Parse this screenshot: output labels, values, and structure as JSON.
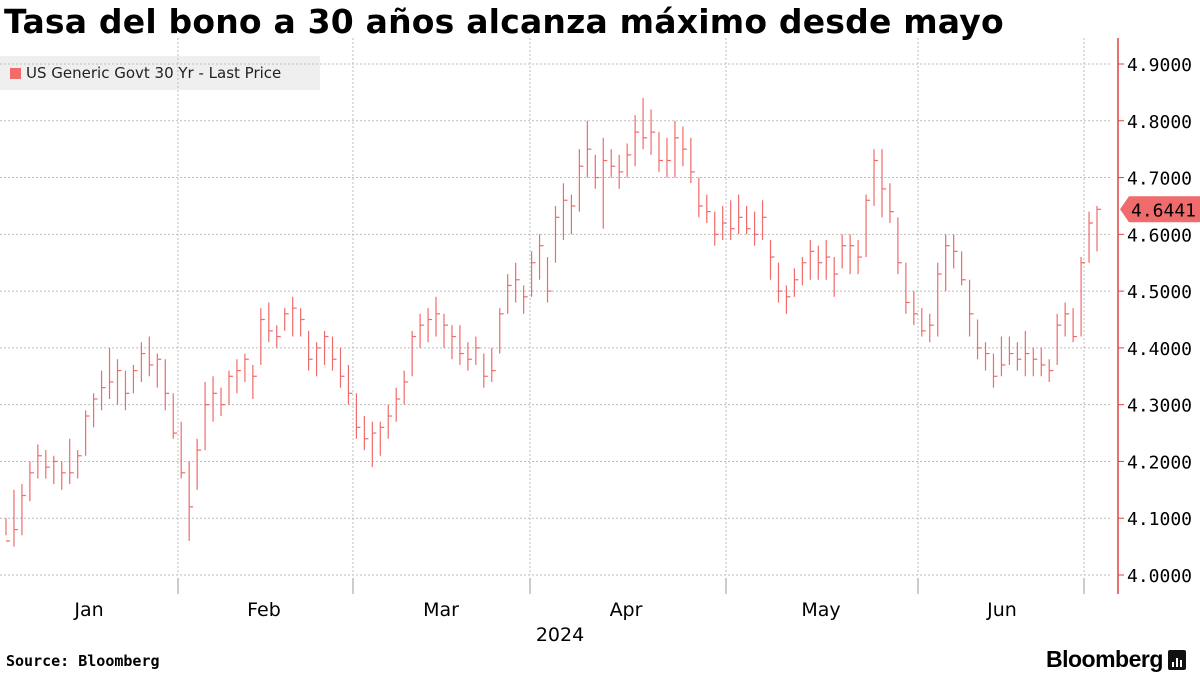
{
  "title": "Tasa del bono a 30 años alcanza máximo desde mayo",
  "source": "Source: Bloomberg",
  "brand": "Bloomberg",
  "colors": {
    "series": "#f06b6b",
    "grid": "#bdbdbd",
    "axis": "#e3403f",
    "text": "#000000"
  },
  "chart_data": {
    "type": "line",
    "series": [
      {
        "name": "US Generic Govt 30 Yr - Last Price",
        "style": "ohlc-bars"
      }
    ],
    "x_ticks": [
      "Jan",
      "Feb",
      "Mar",
      "Apr",
      "May",
      "Jun"
    ],
    "x_year_label": "2024",
    "y_ticks": [
      "4.9000",
      "4.8000",
      "4.7000",
      "4.6000",
      "4.5000",
      "4.4000",
      "4.3000",
      "4.2000",
      "4.1000",
      "4.0000"
    ],
    "ylim": [
      3.97,
      4.95
    ],
    "last_price": 4.6441,
    "last_price_label": "4.6441",
    "bars": [
      [
        4.1,
        4.07,
        4.06
      ],
      [
        4.15,
        4.05,
        4.08
      ],
      [
        4.16,
        4.07,
        4.14
      ],
      [
        4.2,
        4.13,
        4.18
      ],
      [
        4.23,
        4.17,
        4.21
      ],
      [
        4.22,
        4.17,
        4.19
      ],
      [
        4.21,
        4.16,
        4.2
      ],
      [
        4.2,
        4.15,
        4.18
      ],
      [
        4.24,
        4.16,
        4.18
      ],
      [
        4.22,
        4.17,
        4.21
      ],
      [
        4.29,
        4.21,
        4.28
      ],
      [
        4.32,
        4.26,
        4.31
      ],
      [
        4.36,
        4.29,
        4.33
      ],
      [
        4.4,
        4.31,
        4.34
      ],
      [
        4.38,
        4.3,
        4.36
      ],
      [
        4.36,
        4.29,
        4.32
      ],
      [
        4.37,
        4.32,
        4.36
      ],
      [
        4.41,
        4.34,
        4.39
      ],
      [
        4.42,
        4.35,
        4.37
      ],
      [
        4.39,
        4.33,
        4.38
      ],
      [
        4.38,
        4.29,
        4.32
      ],
      [
        4.32,
        4.24,
        4.25
      ],
      [
        4.27,
        4.17,
        4.18
      ],
      [
        4.2,
        4.06,
        4.12
      ],
      [
        4.24,
        4.15,
        4.22
      ],
      [
        4.34,
        4.22,
        4.3
      ],
      [
        4.35,
        4.27,
        4.32
      ],
      [
        4.33,
        4.28,
        4.3
      ],
      [
        4.36,
        4.3,
        4.35
      ],
      [
        4.38,
        4.32,
        4.36
      ],
      [
        4.39,
        4.34,
        4.38
      ],
      [
        4.37,
        4.31,
        4.35
      ],
      [
        4.47,
        4.37,
        4.45
      ],
      [
        4.48,
        4.41,
        4.43
      ],
      [
        4.44,
        4.4,
        4.42
      ],
      [
        4.47,
        4.43,
        4.46
      ],
      [
        4.49,
        4.42,
        4.47
      ],
      [
        4.47,
        4.42,
        4.45
      ],
      [
        4.43,
        4.36,
        4.38
      ],
      [
        4.41,
        4.35,
        4.4
      ],
      [
        4.43,
        4.37,
        4.42
      ],
      [
        4.42,
        4.36,
        4.38
      ],
      [
        4.4,
        4.33,
        4.35
      ],
      [
        4.37,
        4.3,
        4.32
      ],
      [
        4.32,
        4.24,
        4.26
      ],
      [
        4.28,
        4.22,
        4.24
      ],
      [
        4.27,
        4.19,
        4.25
      ],
      [
        4.27,
        4.21,
        4.26
      ],
      [
        4.3,
        4.24,
        4.28
      ],
      [
        4.33,
        4.27,
        4.31
      ],
      [
        4.36,
        4.3,
        4.34
      ],
      [
        4.43,
        4.35,
        4.42
      ],
      [
        4.46,
        4.4,
        4.44
      ],
      [
        4.47,
        4.41,
        4.45
      ],
      [
        4.49,
        4.42,
        4.46
      ],
      [
        4.46,
        4.4,
        4.44
      ],
      [
        4.44,
        4.38,
        4.42
      ],
      [
        4.44,
        4.37,
        4.39
      ],
      [
        4.41,
        4.36,
        4.38
      ],
      [
        4.42,
        4.37,
        4.4
      ],
      [
        4.39,
        4.33,
        4.35
      ],
      [
        4.4,
        4.34,
        4.36
      ],
      [
        4.47,
        4.39,
        4.46
      ],
      [
        4.53,
        4.46,
        4.51
      ],
      [
        4.55,
        4.48,
        4.52
      ],
      [
        4.51,
        4.46,
        4.49
      ],
      [
        4.57,
        4.49,
        4.55
      ],
      [
        4.6,
        4.52,
        4.58
      ],
      [
        4.56,
        4.48,
        4.5
      ],
      [
        4.65,
        4.55,
        4.63
      ],
      [
        4.69,
        4.59,
        4.66
      ],
      [
        4.67,
        4.6,
        4.65
      ],
      [
        4.75,
        4.64,
        4.72
      ],
      [
        4.8,
        4.7,
        4.75
      ],
      [
        4.74,
        4.68,
        4.7
      ],
      [
        4.77,
        4.61,
        4.73
      ],
      [
        4.75,
        4.7,
        4.72
      ],
      [
        4.74,
        4.68,
        4.71
      ],
      [
        4.76,
        4.7,
        4.74
      ],
      [
        4.81,
        4.72,
        4.78
      ],
      [
        4.84,
        4.75,
        4.77
      ],
      [
        4.82,
        4.74,
        4.78
      ],
      [
        4.78,
        4.71,
        4.73
      ],
      [
        4.77,
        4.7,
        4.73
      ],
      [
        4.8,
        4.7,
        4.77
      ],
      [
        4.79,
        4.72,
        4.75
      ],
      [
        4.77,
        4.69,
        4.71
      ],
      [
        4.7,
        4.63,
        4.65
      ],
      [
        4.67,
        4.62,
        4.64
      ],
      [
        4.64,
        4.58,
        4.6
      ],
      [
        4.65,
        4.59,
        4.62
      ],
      [
        4.66,
        4.59,
        4.61
      ],
      [
        4.67,
        4.6,
        4.63
      ],
      [
        4.65,
        4.6,
        4.61
      ],
      [
        4.64,
        4.58,
        4.6
      ],
      [
        4.66,
        4.59,
        4.63
      ],
      [
        4.59,
        4.52,
        4.56
      ],
      [
        4.55,
        4.48,
        4.5
      ],
      [
        4.51,
        4.46,
        4.49
      ],
      [
        4.54,
        4.49,
        4.52
      ],
      [
        4.56,
        4.51,
        4.55
      ],
      [
        4.59,
        4.52,
        4.57
      ],
      [
        4.58,
        4.52,
        4.55
      ],
      [
        4.59,
        4.52,
        4.56
      ],
      [
        4.56,
        4.49,
        4.53
      ],
      [
        4.6,
        4.54,
        4.58
      ],
      [
        4.6,
        4.53,
        4.58
      ],
      [
        4.59,
        4.53,
        4.56
      ],
      [
        4.67,
        4.56,
        4.66
      ],
      [
        4.75,
        4.65,
        4.73
      ],
      [
        4.75,
        4.63,
        4.68
      ],
      [
        4.69,
        4.62,
        4.64
      ],
      [
        4.63,
        4.53,
        4.55
      ],
      [
        4.55,
        4.46,
        4.48
      ],
      [
        4.5,
        4.44,
        4.46
      ],
      [
        4.47,
        4.42,
        4.43
      ],
      [
        4.46,
        4.41,
        4.44
      ],
      [
        4.55,
        4.42,
        4.53
      ],
      [
        4.6,
        4.5,
        4.58
      ],
      [
        4.6,
        4.54,
        4.57
      ],
      [
        4.57,
        4.51,
        4.52
      ],
      [
        4.52,
        4.42,
        4.46
      ],
      [
        4.45,
        4.38,
        4.4
      ],
      [
        4.41,
        4.36,
        4.39
      ],
      [
        4.39,
        4.33,
        4.35
      ],
      [
        4.42,
        4.35,
        4.37
      ],
      [
        4.42,
        4.37,
        4.39
      ],
      [
        4.41,
        4.36,
        4.38
      ],
      [
        4.43,
        4.35,
        4.39
      ],
      [
        4.4,
        4.35,
        4.38
      ],
      [
        4.4,
        4.35,
        4.37
      ],
      [
        4.38,
        4.34,
        4.36
      ],
      [
        4.46,
        4.37,
        4.44
      ],
      [
        4.48,
        4.42,
        4.46
      ],
      [
        4.47,
        4.41,
        4.42
      ],
      [
        4.56,
        4.42,
        4.55
      ],
      [
        4.64,
        4.55,
        4.62
      ],
      [
        4.65,
        4.57,
        4.6441
      ]
    ]
  }
}
